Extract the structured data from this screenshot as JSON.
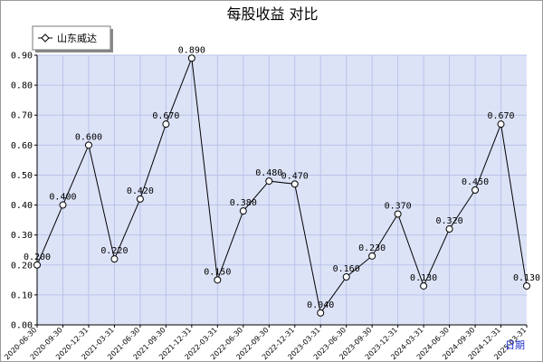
{
  "chart_data": {
    "type": "line",
    "title": "每股收益  对比",
    "xlabel": "日期",
    "ylabel": "",
    "ylim": [
      0,
      0.9
    ],
    "yticks": [
      "0.00",
      "0.10",
      "0.20",
      "0.30",
      "0.40",
      "0.50",
      "0.60",
      "0.70",
      "0.80",
      "0.90"
    ],
    "grid": true,
    "legend_position": "top-left",
    "categories": [
      "2020-06-30",
      "2020-09-30",
      "2020-12-31",
      "2021-03-31",
      "2021-06-30",
      "2021-09-30",
      "2021-12-31",
      "2022-03-31",
      "2022-06-30",
      "2022-09-30",
      "2022-12-31",
      "2023-03-31",
      "2023-06-30",
      "2023-09-30",
      "2023-12-31",
      "2024-03-31",
      "2024-06-30",
      "2024-09-30",
      "2024-12-31",
      "2025-03-31"
    ],
    "series": [
      {
        "name": "山东威达",
        "values": [
          0.2,
          0.4,
          0.6,
          0.22,
          0.42,
          0.67,
          0.89,
          0.15,
          0.38,
          0.48,
          0.47,
          0.04,
          0.16,
          0.23,
          0.37,
          0.13,
          0.32,
          0.45,
          0.67,
          0.13
        ],
        "labels": [
          "0.200",
          "0.400",
          "0.600",
          "0.220",
          "0.420",
          "0.670",
          "0.890",
          "0.150",
          "0.380",
          "0.480",
          "0.470",
          "0.040",
          "0.160",
          "0.230",
          "0.370",
          "0.130",
          "0.320",
          "0.450",
          "0.670",
          "0.130"
        ]
      }
    ],
    "colors": {
      "plot_bg": "#dde3f7",
      "grid": "#b8c3e8",
      "line": "#000000",
      "axis_word": "#1f2fd0"
    }
  }
}
